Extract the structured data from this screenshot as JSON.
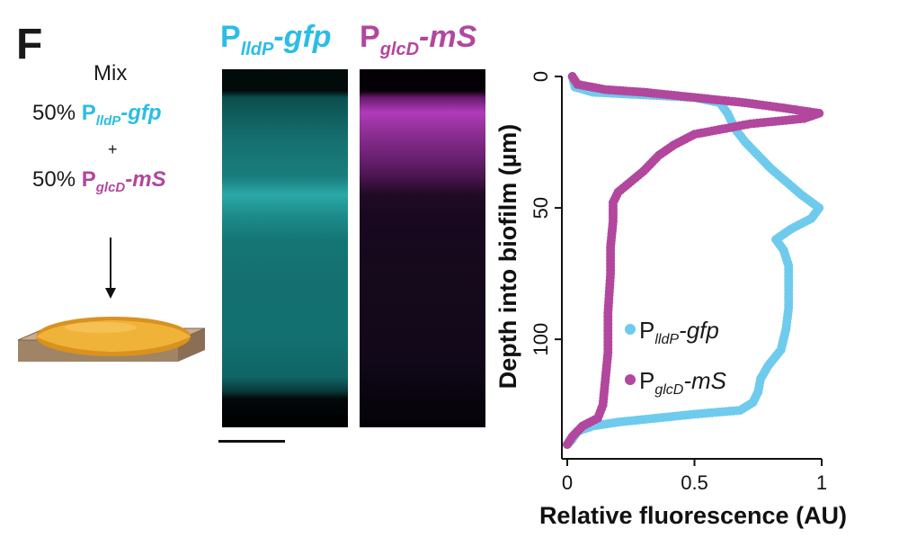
{
  "panel_letter": "F",
  "schematic": {
    "mix_label": "Mix",
    "line1_percent": "50%",
    "line1_P": "P",
    "line1_sub": "lldP",
    "line1_gene": "-gfp",
    "plus": "+",
    "line2_percent": "50%",
    "line2_P": "P",
    "line2_sub": "glcD",
    "line2_gene": "-mS"
  },
  "images": {
    "left_title_P": "P",
    "left_title_sub": "lldP",
    "left_title_gene": "-gfp",
    "right_title_P": "P",
    "right_title_sub": "glcD",
    "right_title_gene": "-mS"
  },
  "colors": {
    "cyan": "#2bbde6",
    "magenta": "#b2479e",
    "gfp_series": "#6fcbed",
    "ms_series": "#b2479e",
    "agar": "#a08466",
    "biofilm": "#f0b33a"
  },
  "chart_data": {
    "type": "scatter",
    "xlabel": "Relative fluorescence (AU)",
    "ylabel": "Depth into biofilm (µm)",
    "xlim": [
      0,
      1
    ],
    "ylim": [
      140,
      0
    ],
    "y_inverted": true,
    "x_ticks": [
      "0",
      "0.5",
      "1"
    ],
    "y_ticks": [
      "0",
      "50",
      "100"
    ],
    "legend_placement": "inside-right",
    "series": [
      {
        "name": "P lldP -gfp",
        "legend_P": "P",
        "legend_sub": "lldP",
        "legend_gene": "-gfp",
        "points": [
          [
            0.02,
            0
          ],
          [
            0.03,
            4
          ],
          [
            0.1,
            6
          ],
          [
            0.3,
            7
          ],
          [
            0.5,
            8
          ],
          [
            0.6,
            10
          ],
          [
            0.63,
            14
          ],
          [
            0.66,
            20
          ],
          [
            0.7,
            25
          ],
          [
            0.75,
            30
          ],
          [
            0.8,
            35
          ],
          [
            0.86,
            40
          ],
          [
            0.92,
            45
          ],
          [
            0.99,
            50
          ],
          [
            0.96,
            54
          ],
          [
            0.88,
            58
          ],
          [
            0.82,
            62
          ],
          [
            0.85,
            66
          ],
          [
            0.87,
            72
          ],
          [
            0.87,
            80
          ],
          [
            0.87,
            88
          ],
          [
            0.86,
            96
          ],
          [
            0.84,
            104
          ],
          [
            0.79,
            110
          ],
          [
            0.76,
            115
          ],
          [
            0.75,
            120
          ],
          [
            0.73,
            124
          ],
          [
            0.68,
            127
          ],
          [
            0.5,
            128.5
          ],
          [
            0.35,
            130
          ],
          [
            0.2,
            131.5
          ],
          [
            0.1,
            133
          ],
          [
            0.04,
            135
          ],
          [
            0.02,
            138
          ],
          [
            0.0,
            140
          ]
        ]
      },
      {
        "name": "P glcD -mS",
        "legend_P": "P",
        "legend_sub": "glcD",
        "legend_gene": "-mS",
        "points": [
          [
            0.02,
            0
          ],
          [
            0.04,
            3
          ],
          [
            0.15,
            5
          ],
          [
            0.3,
            6
          ],
          [
            0.5,
            8
          ],
          [
            0.7,
            10
          ],
          [
            0.85,
            12
          ],
          [
            0.99,
            14
          ],
          [
            0.93,
            16
          ],
          [
            0.72,
            18
          ],
          [
            0.5,
            22
          ],
          [
            0.42,
            26
          ],
          [
            0.36,
            30
          ],
          [
            0.3,
            36
          ],
          [
            0.25,
            40
          ],
          [
            0.2,
            44
          ],
          [
            0.18,
            48
          ],
          [
            0.18,
            55
          ],
          [
            0.17,
            65
          ],
          [
            0.17,
            75
          ],
          [
            0.16,
            90
          ],
          [
            0.16,
            105
          ],
          [
            0.15,
            115
          ],
          [
            0.14,
            125
          ],
          [
            0.12,
            130
          ],
          [
            0.06,
            133
          ],
          [
            0.02,
            137
          ],
          [
            0.0,
            140
          ]
        ]
      }
    ]
  }
}
